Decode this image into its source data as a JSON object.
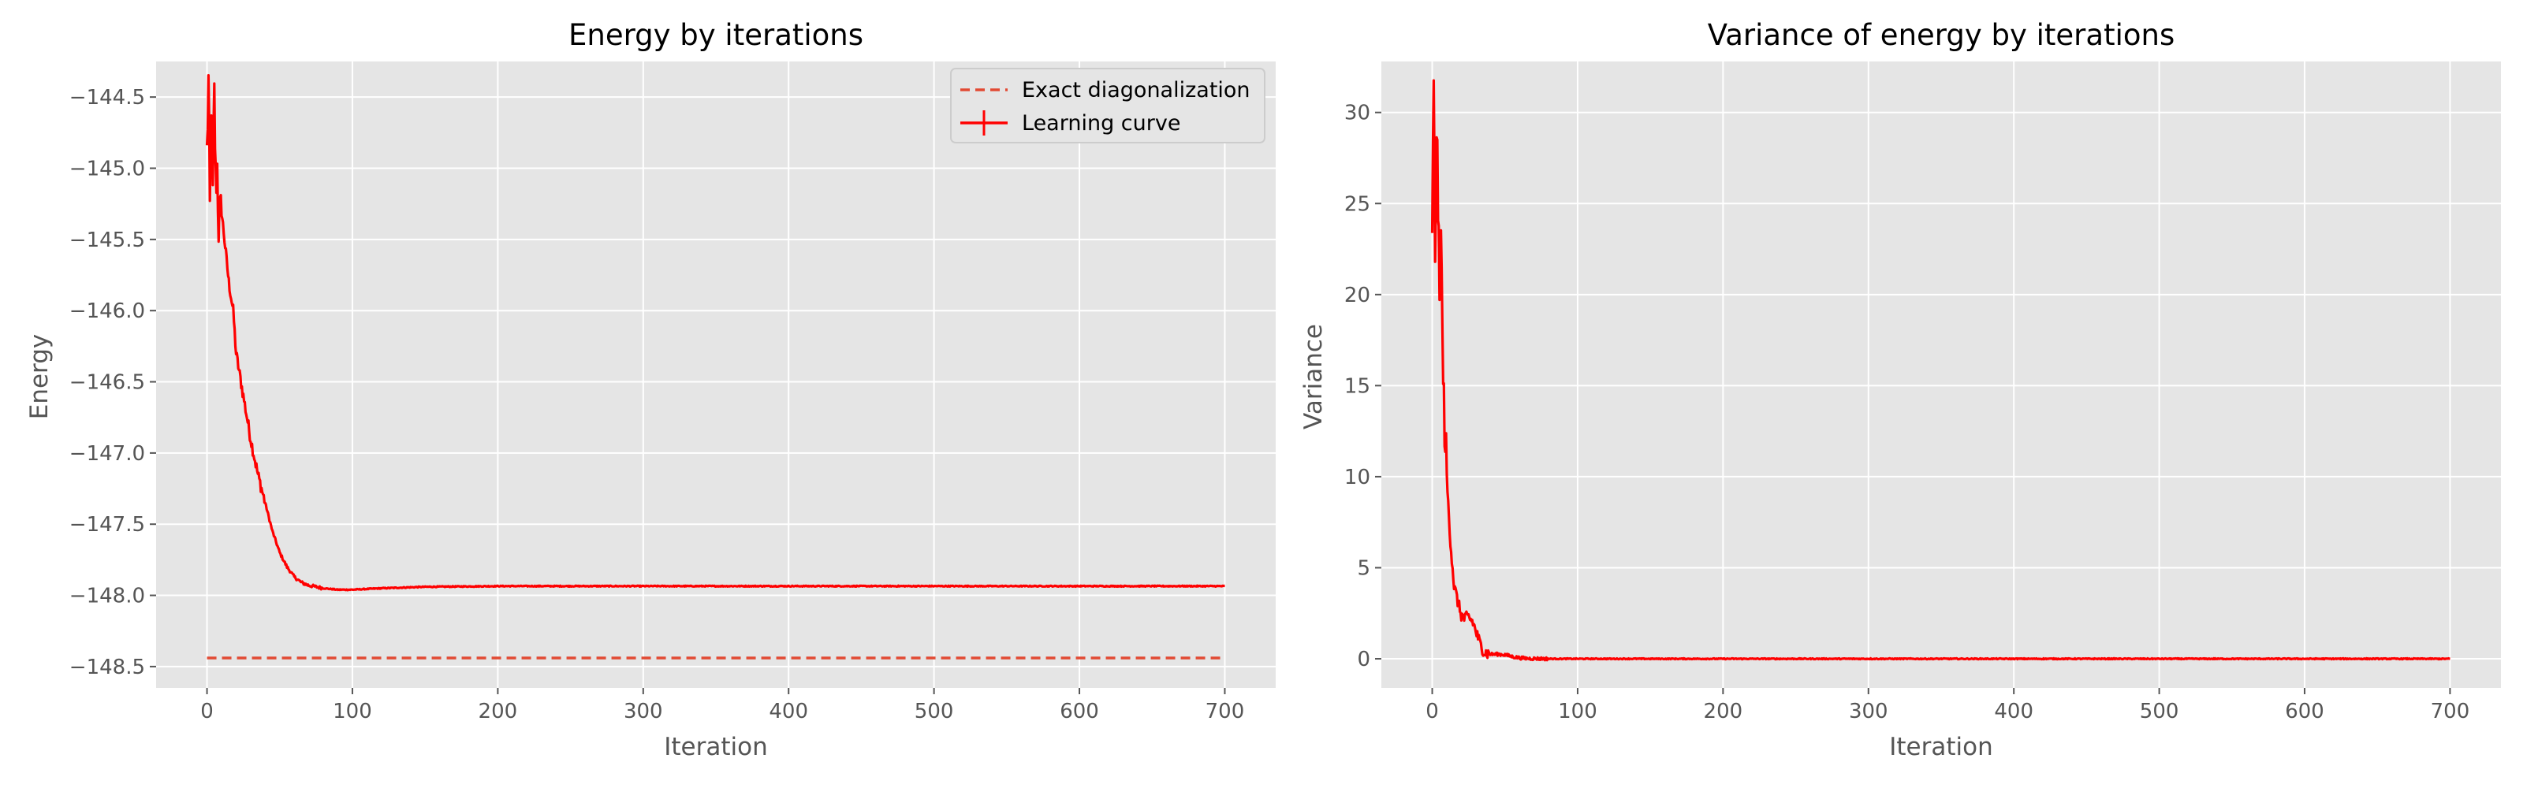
{
  "colors": {
    "panel_bg": "#e5e5e5",
    "grid": "#ffffff",
    "learning": "#ff0000",
    "exact": "#e24a33",
    "tick": "#555555"
  },
  "chart_data": [
    {
      "type": "line",
      "title": "Energy by iterations",
      "xlabel": "Iteration",
      "ylabel": "Energy",
      "xlim": [
        -35,
        735
      ],
      "ylim": [
        -148.65,
        -144.25
      ],
      "grid": true,
      "legend_position": "top-right",
      "x_ticks": [
        0,
        100,
        200,
        300,
        400,
        500,
        600,
        700
      ],
      "x_tick_labels": [
        "0",
        "100",
        "200",
        "300",
        "400",
        "500",
        "600",
        "700"
      ],
      "y_ticks": [
        -148.5,
        -148.0,
        -147.5,
        -147.0,
        -146.5,
        -146.0,
        -145.5,
        -145.0,
        -144.5
      ],
      "y_tick_labels": [
        "−148.5",
        "−148.0",
        "−147.5",
        "−147.0",
        "−146.5",
        "−146.0",
        "−145.5",
        "−145.0",
        "−144.5"
      ],
      "legend": [
        "Exact diagonalization",
        "Learning curve"
      ],
      "series": [
        {
          "name": "Exact diagonalization",
          "style": "dashed",
          "x": [
            0,
            700
          ],
          "y": [
            -148.44,
            -148.44
          ]
        },
        {
          "name": "Learning curve",
          "style": "solid-noisy",
          "x": [
            0,
            1,
            2,
            3,
            4,
            5,
            6,
            7,
            8,
            10,
            12,
            15,
            18,
            20,
            25,
            30,
            35,
            40,
            45,
            50,
            55,
            60,
            65,
            70,
            75,
            80,
            85,
            90,
            100,
            110,
            120,
            150,
            200,
            250,
            300,
            350,
            400,
            450,
            500,
            550,
            600,
            650,
            700
          ],
          "y": [
            -144.9,
            -144.4,
            -145.3,
            -144.5,
            -145.2,
            -144.5,
            -145.1,
            -145.0,
            -145.4,
            -145.3,
            -145.5,
            -145.8,
            -146.0,
            -146.3,
            -146.6,
            -146.9,
            -147.15,
            -147.35,
            -147.55,
            -147.7,
            -147.8,
            -147.87,
            -147.91,
            -147.93,
            -147.94,
            -147.95,
            -147.955,
            -147.96,
            -147.96,
            -147.955,
            -147.95,
            -147.94,
            -147.935,
            -147.935,
            -147.935,
            -147.935,
            -147.935,
            -147.935,
            -147.935,
            -147.935,
            -147.935,
            -147.935,
            -147.935
          ]
        }
      ]
    },
    {
      "type": "line",
      "title": "Variance of energy by iterations",
      "xlabel": "Iteration",
      "ylabel": "Variance",
      "xlim": [
        -35,
        735
      ],
      "ylim": [
        -1.6,
        32.8
      ],
      "grid": true,
      "x_ticks": [
        0,
        100,
        200,
        300,
        400,
        500,
        600,
        700
      ],
      "x_tick_labels": [
        "0",
        "100",
        "200",
        "300",
        "400",
        "500",
        "600",
        "700"
      ],
      "y_ticks": [
        0,
        5,
        10,
        15,
        20,
        25,
        30
      ],
      "y_tick_labels": [
        "0",
        "5",
        "10",
        "15",
        "20",
        "25",
        "30"
      ],
      "series": [
        {
          "name": "Variance",
          "style": "solid-noisy",
          "x": [
            0,
            1,
            2,
            3,
            4,
            5,
            6,
            7,
            8,
            10,
            12,
            15,
            18,
            20,
            22,
            25,
            28,
            30,
            33,
            36,
            40,
            45,
            50,
            55,
            60,
            65,
            70,
            80,
            100,
            200,
            300,
            400,
            500,
            600,
            700
          ],
          "y": [
            24.0,
            31.0,
            22.0,
            29.5,
            25.0,
            19.5,
            25.0,
            17.0,
            14.0,
            10.0,
            7.0,
            4.0,
            3.0,
            2.4,
            2.2,
            2.3,
            2.0,
            1.5,
            0.8,
            0.35,
            0.25,
            0.25,
            0.22,
            0.12,
            0.05,
            0.02,
            0.01,
            0.0,
            0.0,
            0.0,
            0.0,
            0.0,
            0.0,
            0.0,
            0.0
          ]
        }
      ]
    }
  ]
}
